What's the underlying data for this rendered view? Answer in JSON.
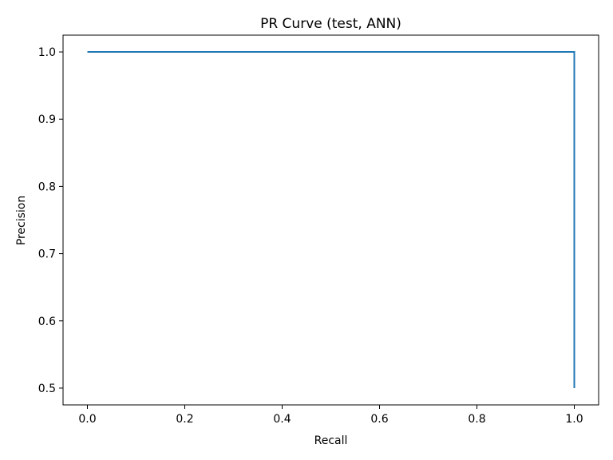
{
  "chart_data": {
    "type": "line",
    "title": "PR Curve (test, ANN)",
    "xlabel": "Recall",
    "ylabel": "Precision",
    "xlim": [
      -0.05,
      1.05
    ],
    "ylim": [
      0.475,
      1.025
    ],
    "xticks": [
      0.0,
      0.2,
      0.4,
      0.6,
      0.8,
      1.0
    ],
    "xtick_labels": [
      "0.0",
      "0.2",
      "0.4",
      "0.6",
      "0.8",
      "1.0"
    ],
    "yticks": [
      0.5,
      0.6,
      0.7,
      0.8,
      0.9,
      1.0
    ],
    "ytick_labels": [
      "0.5",
      "0.6",
      "0.7",
      "0.8",
      "0.9",
      "1.0"
    ],
    "grid": false,
    "legend": false,
    "series": [
      {
        "color": "#1f77b4",
        "x": [
          0.0,
          1.0,
          1.0
        ],
        "y": [
          1.0,
          1.0,
          0.5
        ]
      }
    ]
  }
}
